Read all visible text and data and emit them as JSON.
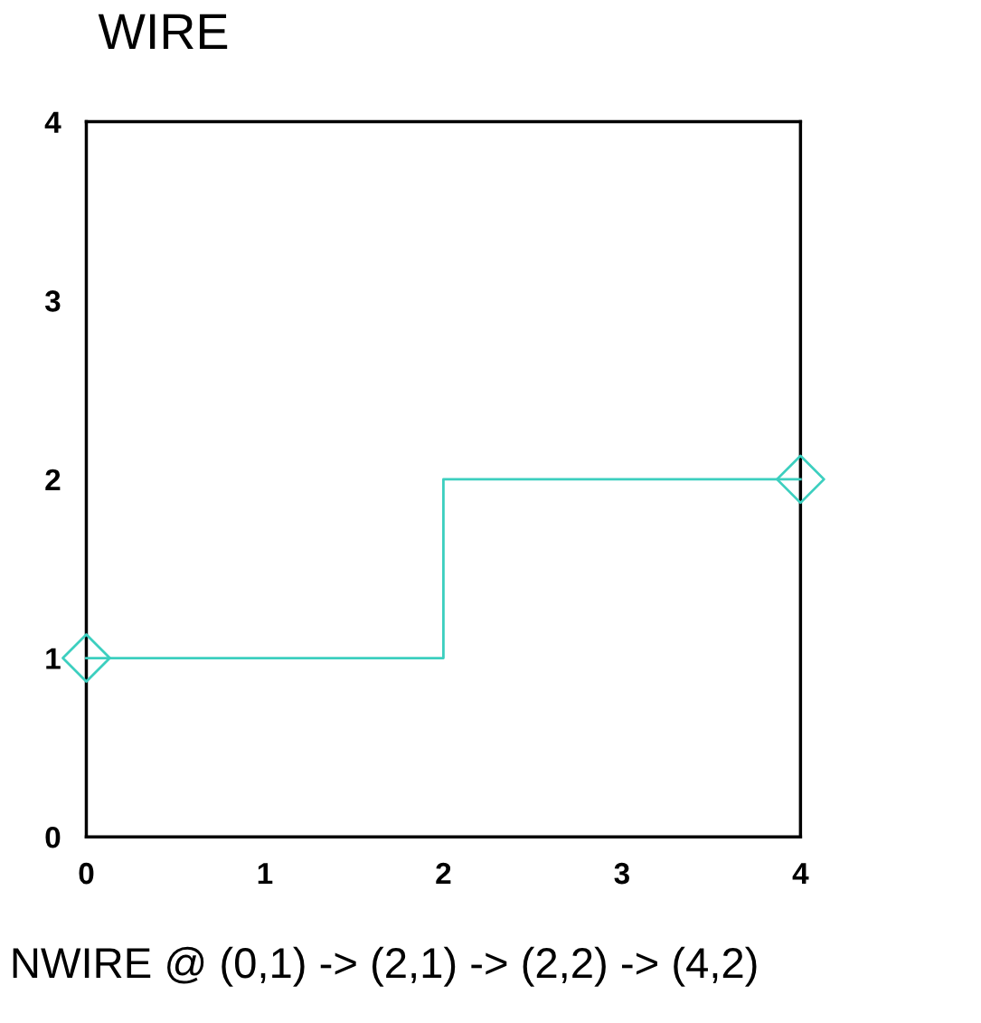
{
  "chart_data": {
    "type": "line",
    "title": "WIRE",
    "series": [
      {
        "type": "line",
        "color": "#3ccfbf",
        "x": [
          0,
          2,
          2,
          4
        ],
        "values": [
          1,
          1,
          2,
          2
        ],
        "marker": "none"
      },
      {
        "type": "scatter",
        "color": "#3ccfbf",
        "x": [
          0,
          4
        ],
        "values": [
          1,
          2
        ],
        "marker": "diamond"
      }
    ],
    "xlim": [
      0,
      4
    ],
    "ylim": [
      0,
      4
    ],
    "xticks": [
      0,
      1,
      2,
      3,
      4
    ],
    "yticks": [
      0,
      1,
      2,
      3,
      4
    ],
    "grid": false,
    "legend": false,
    "annotations": [
      "NWIRE @ (0,1) -> (2,1) -> (2,2) -> (4,2)"
    ]
  }
}
